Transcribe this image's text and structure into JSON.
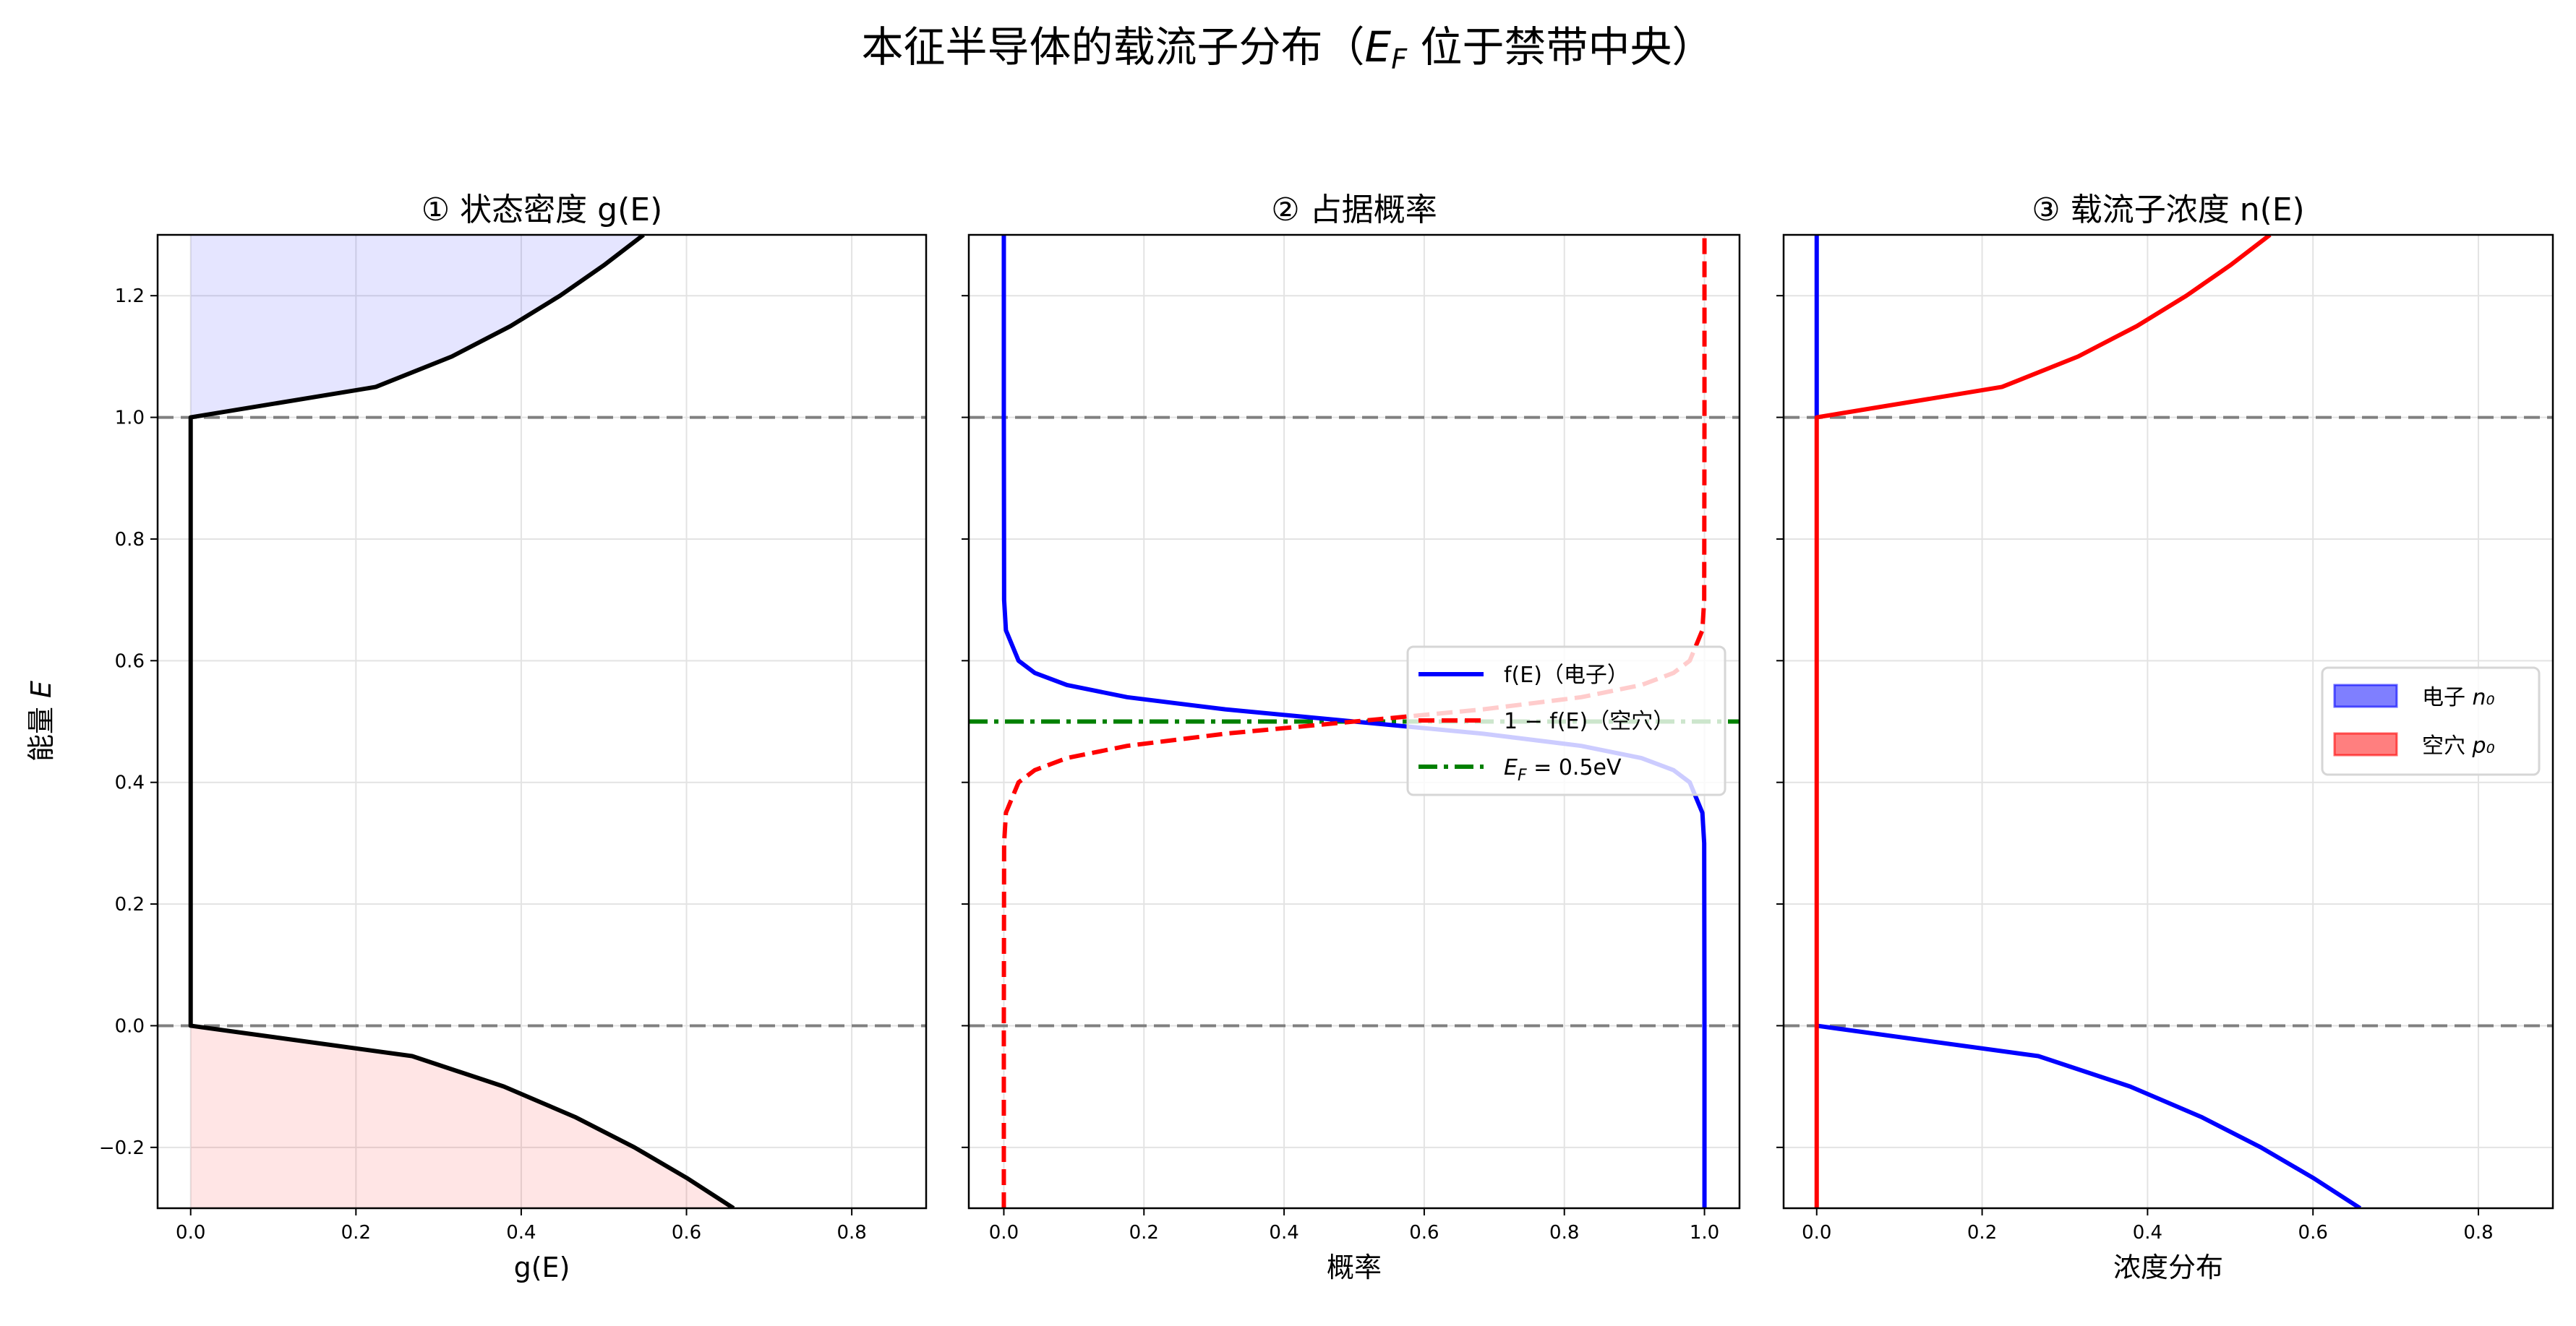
{
  "suptitle": {
    "pre": "本征半导体的载流子分布（",
    "E": "E",
    "sub": "F",
    "post": " 位于禁带中央）"
  },
  "ylabel": {
    "text": "能量 ",
    "var": "E"
  },
  "chart_data": [
    {
      "type": "line",
      "title": "① 状态密度 g(E)",
      "xlabel": "g(E)",
      "ylabel": "能量 E",
      "xlim": [
        -0.04,
        0.89
      ],
      "ylim": [
        -0.3,
        1.3
      ],
      "xticks": [
        "0.0",
        "0.2",
        "0.4",
        "0.6",
        "0.8"
      ],
      "yticks": [
        "−0.2",
        "0.0",
        "0.2",
        "0.4",
        "0.6",
        "0.8",
        "1.0",
        "1.2"
      ],
      "grid": true,
      "hlines": [
        {
          "E": 0.0,
          "style": "dashed",
          "color": "#808080"
        },
        {
          "E": 1.0,
          "style": "dashed",
          "color": "#808080"
        }
      ],
      "series": [
        {
          "color": "#000000",
          "E": [
            -0.3,
            -0.25,
            -0.2,
            -0.15,
            -0.1,
            -0.05,
            0,
            0,
            1,
            1,
            1.05,
            1.1,
            1.15,
            1.2,
            1.25,
            1.3
          ],
          "x": [
            0.657,
            0.6,
            0.537,
            0.465,
            0.379,
            0.268,
            0,
            0,
            0,
            0,
            0.224,
            0.316,
            0.387,
            0.447,
            0.5,
            0.548
          ]
        }
      ],
      "fills": [
        {
          "color": "#0000ff",
          "alpha": 0.1,
          "E": [
            1,
            1.05,
            1.1,
            1.15,
            1.2,
            1.25,
            1.3
          ],
          "x": [
            0,
            0.224,
            0.316,
            0.387,
            0.447,
            0.5,
            0.548
          ]
        },
        {
          "color": "#ff0000",
          "alpha": 0.1,
          "E": [
            0,
            -0.05,
            -0.1,
            -0.15,
            -0.2,
            -0.25,
            -0.3
          ],
          "x": [
            0,
            0.268,
            0.379,
            0.465,
            0.537,
            0.6,
            0.657
          ]
        }
      ]
    },
    {
      "type": "line",
      "title": "② 占据概率",
      "xlabel": "概率",
      "xlim": [
        -0.05,
        1.05
      ],
      "ylim": [
        -0.3,
        1.3
      ],
      "xticks": [
        "0.0",
        "0.2",
        "0.4",
        "0.6",
        "0.8",
        "1.0"
      ],
      "grid": true,
      "hlines": [
        {
          "E": 0.0,
          "style": "dashed",
          "color": "#808080"
        },
        {
          "E": 1.0,
          "style": "dashed",
          "color": "#808080"
        },
        {
          "E": 0.5,
          "style": "dashdot",
          "color": "#008000"
        }
      ],
      "series": [
        {
          "name": "f(E)（电子）",
          "color": "#0000ff",
          "style": "solid",
          "E": [
            -0.3,
            0,
            0.3,
            0.35,
            0.4,
            0.42,
            0.44,
            0.46,
            0.48,
            0.5,
            0.52,
            0.54,
            0.56,
            0.58,
            0.6,
            0.65,
            0.7,
            1.0,
            1.3
          ],
          "x": [
            1,
            1,
            0.9996,
            0.997,
            0.979,
            0.956,
            0.91,
            0.824,
            0.684,
            0.5,
            0.316,
            0.176,
            0.09,
            0.044,
            0.021,
            0.003,
            0.0004,
            0,
            0
          ]
        },
        {
          "name": "1 − f(E)（空穴）",
          "color": "#ff0000",
          "style": "dashed",
          "E": [
            -0.3,
            0,
            0.3,
            0.35,
            0.4,
            0.42,
            0.44,
            0.46,
            0.48,
            0.5,
            0.52,
            0.54,
            0.56,
            0.58,
            0.6,
            0.65,
            0.7,
            1.0,
            1.3
          ],
          "x": [
            0,
            0,
            0.0004,
            0.003,
            0.021,
            0.044,
            0.09,
            0.176,
            0.316,
            0.5,
            0.684,
            0.824,
            0.91,
            0.956,
            0.979,
            0.997,
            0.9996,
            1,
            1
          ]
        }
      ],
      "legend": {
        "placement": "center-right",
        "items": [
          {
            "label": "f(E)（电子）",
            "color": "#0000ff",
            "style": "solid"
          },
          {
            "label": "1 − f(E)（空穴）",
            "color": "#ff0000",
            "style": "dashed"
          },
          {
            "label_main": "E",
            "label_sub": "F",
            "label_rest": " = 0.5eV",
            "color": "#008000",
            "style": "dashdot"
          }
        ]
      }
    },
    {
      "type": "line",
      "title": "③ 载流子浓度 n(E)",
      "xlabel": "浓度分布",
      "xlim": [
        -0.04,
        0.89
      ],
      "ylim": [
        -0.3,
        1.3
      ],
      "xticks": [
        "0.0",
        "0.2",
        "0.4",
        "0.6",
        "0.8"
      ],
      "grid": true,
      "hlines": [
        {
          "E": 0.0,
          "style": "dashed",
          "color": "#808080"
        },
        {
          "E": 1.0,
          "style": "dashed",
          "color": "#808080"
        }
      ],
      "series": [
        {
          "color": "#0000ff",
          "E": [
            1.3,
            1.0,
            1.0,
            0,
            0,
            -0.05,
            -0.1,
            -0.15,
            -0.2,
            -0.25,
            -0.3
          ],
          "x": [
            0,
            0,
            null,
            null,
            0,
            0.268,
            0.379,
            0.465,
            0.537,
            0.6,
            0.657
          ]
        },
        {
          "color": "#ff0000",
          "E": [
            -0.3,
            1.0,
            1.0,
            1.05,
            1.1,
            1.15,
            1.2,
            1.25,
            1.3
          ],
          "x": [
            0,
            0,
            0,
            0.224,
            0.316,
            0.387,
            0.447,
            0.5,
            0.548
          ]
        }
      ],
      "legend": {
        "placement": "center-right",
        "items": [
          {
            "label": "电子 ",
            "var": "n₀",
            "color": "#0000ff",
            "alpha": 0.5
          },
          {
            "label": "空穴 ",
            "var": "p₀",
            "color": "#ff0000",
            "alpha": 0.5
          }
        ]
      }
    }
  ]
}
